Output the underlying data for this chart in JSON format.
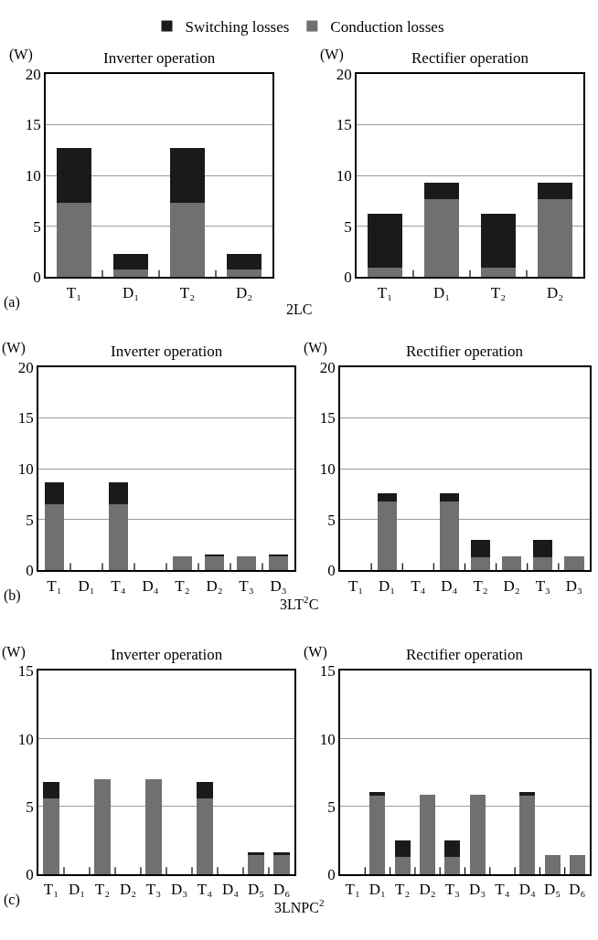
{
  "chart_data": [
    {
      "type": "bar",
      "stacked": true,
      "title": "Inverter operation",
      "ylabel": "(W)",
      "categories": [
        "T₁",
        "D₁",
        "T₂",
        "D₂"
      ],
      "series": [
        {
          "name": "Conduction losses",
          "color": "#707070",
          "values": [
            7.3,
            0.8,
            7.3,
            0.8
          ]
        },
        {
          "name": "Switching losses",
          "color": "#1a1a1a",
          "values": [
            5.4,
            1.5,
            5.4,
            1.5
          ]
        }
      ],
      "ylim": [
        0,
        20
      ],
      "yticks": [
        0,
        5,
        10,
        15,
        20
      ],
      "grid": "y",
      "legend": "top",
      "annotations": [
        "(a)",
        "2LC"
      ]
    },
    {
      "type": "bar",
      "stacked": true,
      "title": "Rectifier operation",
      "ylabel": "(W)",
      "categories": [
        "T₁",
        "D₁",
        "T₂",
        "D₂"
      ],
      "series": [
        {
          "color": "#707070",
          "values": [
            0.9,
            7.7,
            0.9,
            7.7
          ]
        },
        {
          "color": "#1a1a1a",
          "values": [
            5.3,
            1.6,
            5.3,
            1.6
          ]
        }
      ],
      "ylim": [
        0,
        20
      ],
      "yticks": [
        0,
        5,
        10,
        15,
        20
      ],
      "grid": "y"
    },
    {
      "type": "bar",
      "stacked": true,
      "title": "Inverter operation",
      "ylabel": "(W)",
      "categories": [
        "T₁",
        "D₁",
        "T₄",
        "D₄",
        "T₂",
        "D₂",
        "T₃",
        "D₃"
      ],
      "series": [
        {
          "color": "#707070",
          "values": [
            6.5,
            0,
            6.5,
            0,
            1.4,
            1.4,
            1.4,
            1.4
          ]
        },
        {
          "color": "#1a1a1a",
          "values": [
            2.2,
            0,
            2.2,
            0,
            0,
            0.2,
            0,
            0.2
          ]
        }
      ],
      "ylim": [
        0,
        20
      ],
      "yticks": [
        0,
        5,
        10,
        15,
        20
      ],
      "grid": "y",
      "annotations": [
        "(b)",
        "3LT$^{2}$C"
      ]
    },
    {
      "type": "bar",
      "stacked": true,
      "title": "Rectifier operation",
      "ylabel": "(W)",
      "categories": [
        "T₁",
        "D₁",
        "T₄",
        "D₄",
        "T₂",
        "D₂",
        "T₃",
        "D₃"
      ],
      "series": [
        {
          "color": "#707070",
          "values": [
            0,
            6.8,
            0,
            6.8,
            1.3,
            1.4,
            1.3,
            1.4
          ]
        },
        {
          "color": "#1a1a1a",
          "values": [
            0,
            0.8,
            0,
            0.8,
            1.7,
            0,
            1.7,
            0
          ]
        }
      ],
      "ylim": [
        0,
        20
      ],
      "yticks": [
        0,
        5,
        10,
        15,
        20
      ],
      "grid": "y"
    },
    {
      "type": "bar",
      "stacked": true,
      "title": "Inverter operation",
      "ylabel": "(W)",
      "categories": [
        "T₁",
        "D₁",
        "T₂",
        "D₂",
        "T₃",
        "D₃",
        "T₄",
        "D₄",
        "D₅",
        "D₆"
      ],
      "series": [
        {
          "color": "#707070",
          "values": [
            5.6,
            0,
            7.0,
            0,
            7.0,
            0,
            5.6,
            0,
            1.4,
            1.4
          ]
        },
        {
          "color": "#1a1a1a",
          "values": [
            1.2,
            0,
            0,
            0,
            0,
            0,
            1.2,
            0,
            0.2,
            0.2
          ]
        }
      ],
      "ylim": [
        0,
        15
      ],
      "yticks": [
        0,
        5,
        10,
        15
      ],
      "grid": "y",
      "annotations": [
        "(c)",
        "3LNPC$^{2}$"
      ]
    },
    {
      "type": "bar",
      "stacked": true,
      "title": "Rectifier operation",
      "ylabel": "(W)",
      "categories": [
        "T₁",
        "D₁",
        "T₂",
        "D₂",
        "T₃",
        "D₃",
        "T₄",
        "D₄",
        "D₅",
        "D₆"
      ],
      "series": [
        {
          "color": "#707070",
          "values": [
            0,
            5.8,
            1.3,
            5.9,
            1.3,
            5.9,
            0,
            5.8,
            1.4,
            1.4
          ]
        },
        {
          "color": "#1a1a1a",
          "values": [
            0,
            0.3,
            1.2,
            0,
            1.2,
            0,
            0,
            0.3,
            0,
            0
          ]
        }
      ],
      "ylim": [
        0,
        15
      ],
      "yticks": [
        0,
        5,
        10,
        15
      ],
      "grid": "y"
    }
  ]
}
